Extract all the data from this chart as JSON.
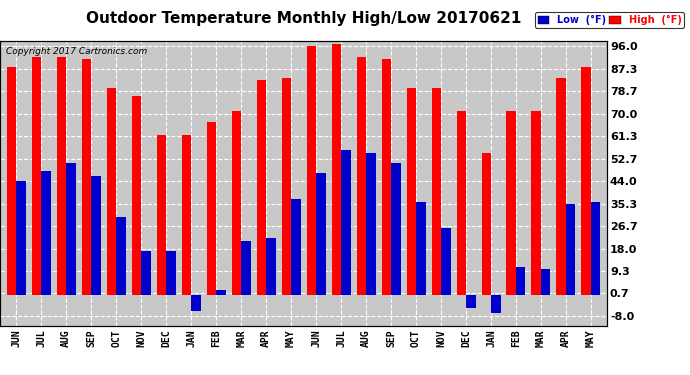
{
  "title": "Outdoor Temperature Monthly High/Low 20170621",
  "copyright": "Copyright 2017 Cartronics.com",
  "categories": [
    "JUN",
    "JUL",
    "AUG",
    "SEP",
    "OCT",
    "NOV",
    "DEC",
    "JAN",
    "FEB",
    "MAR",
    "APR",
    "MAY",
    "JUN",
    "JUL",
    "AUG",
    "SEP",
    "OCT",
    "NOV",
    "DEC",
    "JAN",
    "FEB",
    "MAR",
    "APR",
    "MAY"
  ],
  "high_values": [
    88,
    92,
    92,
    91,
    80,
    77,
    62,
    62,
    67,
    71,
    83,
    84,
    96,
    97,
    92,
    91,
    80,
    80,
    71,
    55,
    71,
    71,
    84,
    88
  ],
  "low_values": [
    44,
    48,
    51,
    46,
    30,
    17,
    17,
    -6,
    2,
    21,
    22,
    37,
    47,
    56,
    55,
    51,
    36,
    26,
    -5,
    -7,
    11,
    10,
    35,
    36
  ],
  "high_color": "#ff0000",
  "low_color": "#0000cc",
  "bg_color": "#ffffff",
  "plot_bg_color": "#c8c8c8",
  "grid_color": "#ffffff",
  "title_fontsize": 11,
  "ytick_values": [
    96.0,
    87.3,
    78.7,
    70.0,
    61.3,
    52.7,
    44.0,
    35.3,
    26.7,
    18.0,
    9.3,
    0.7,
    -8.0
  ],
  "ylim_min": -12.0,
  "ylim_max": 98.0,
  "bar_width": 0.38
}
